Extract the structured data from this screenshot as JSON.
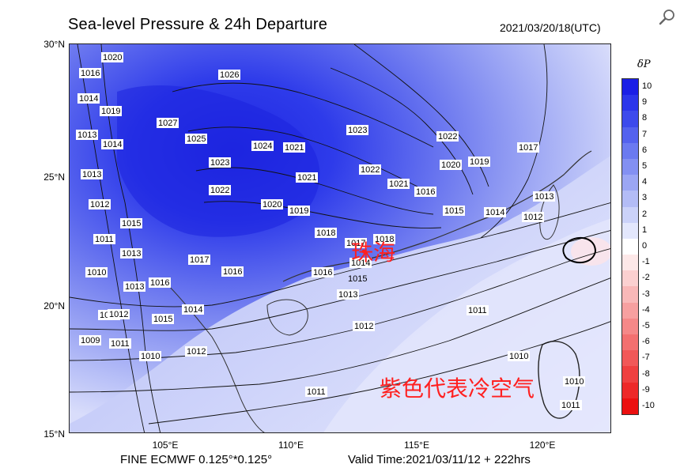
{
  "header": {
    "title": "Sea-level Pressure & 24h Departure",
    "timestamp": "2021/03/20/18(UTC)"
  },
  "toolbar": {
    "zoom_icon": "magnifier-icon"
  },
  "map": {
    "lat_labels": [
      "30°N",
      "25°N",
      "20°N",
      "15°N"
    ],
    "lon_labels": [
      "105°E",
      "110°E",
      "115°E",
      "120°E"
    ],
    "isobar_labels": [
      "1020",
      "1016",
      "1014",
      "1013",
      "1019",
      "1014",
      "1013",
      "1012",
      "1011",
      "1010",
      "1013",
      "1015",
      "1013",
      "1013",
      "1016",
      "1012",
      "1009",
      "1011",
      "1010",
      "1026",
      "1027",
      "1025",
      "1023",
      "1022",
      "1024",
      "1021",
      "1020",
      "1019",
      "1017",
      "1016",
      "1015",
      "1014",
      "1012",
      "1023",
      "1021",
      "1022",
      "1021",
      "1018",
      "1018",
      "1017",
      "1016",
      "1014",
      "1015",
      "1013",
      "1012",
      "1011",
      "1011",
      "1010",
      "1022",
      "1020",
      "1019",
      "1016",
      "1015",
      "1014",
      "1017",
      "1013",
      "1012",
      "1010",
      "1011"
    ],
    "city_annotation": "珠海",
    "note_annotation": "紫色代表冷空气"
  },
  "colorbar": {
    "title": "δP",
    "ticks": [
      "10",
      "9",
      "8",
      "7",
      "6",
      "5",
      "4",
      "3",
      "2",
      "1",
      "0",
      "-1",
      "-2",
      "-3",
      "-4",
      "-5",
      "-6",
      "-7",
      "-8",
      "-9",
      "-10"
    ],
    "colors": [
      "#1a1ee6",
      "#2b35ea",
      "#3d4aec",
      "#5462ee",
      "#6b7af0",
      "#8390f2",
      "#9ba6f4",
      "#b3bcf6",
      "#cbd2f9",
      "#e3e7fc",
      "#ffffff",
      "#fde8e8",
      "#fbd0d0",
      "#f9b8b8",
      "#f7a0a0",
      "#f58888",
      "#f37070",
      "#f15858",
      "#ef4040",
      "#ed2828",
      "#eb1010"
    ]
  },
  "footer": {
    "model": "FINE ECMWF 0.125°*0.125°",
    "valid_time": "Valid Time:2021/03/11/12 + 222hrs"
  }
}
